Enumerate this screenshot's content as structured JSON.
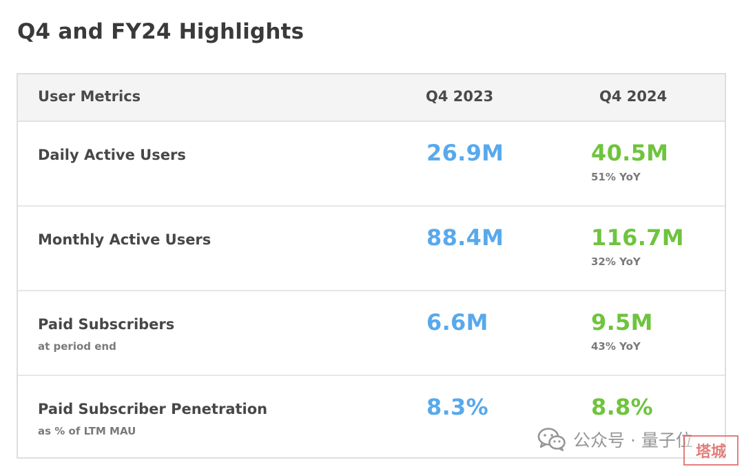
{
  "title": "Q4 and FY24 Highlights",
  "table": {
    "headers": {
      "metric": "User Metrics",
      "col1": "Q4 2023",
      "col2": "Q4 2024"
    },
    "rows": [
      {
        "name": "Daily Active Users",
        "sub": "",
        "q4_2023": "26.9M",
        "q4_2024": "40.5M",
        "yoy": "51% YoY"
      },
      {
        "name": "Monthly Active Users",
        "sub": "",
        "q4_2023": "88.4M",
        "q4_2024": "116.7M",
        "yoy": "32% YoY"
      },
      {
        "name": "Paid Subscribers",
        "sub": "at period end",
        "q4_2023": "6.6M",
        "q4_2024": "9.5M",
        "yoy": "43% YoY"
      },
      {
        "name": "Paid Subscriber Penetration",
        "sub": "as % of LTM MAU",
        "q4_2023": "8.3%",
        "q4_2024": "8.8%",
        "yoy": ""
      }
    ]
  },
  "colors": {
    "q4_2023": "#58a9ec",
    "q4_2024": "#6fc43e"
  },
  "watermark": {
    "text": "公众号 · 量子位",
    "icon": "wechat-icon",
    "seal_text": "塔城"
  }
}
